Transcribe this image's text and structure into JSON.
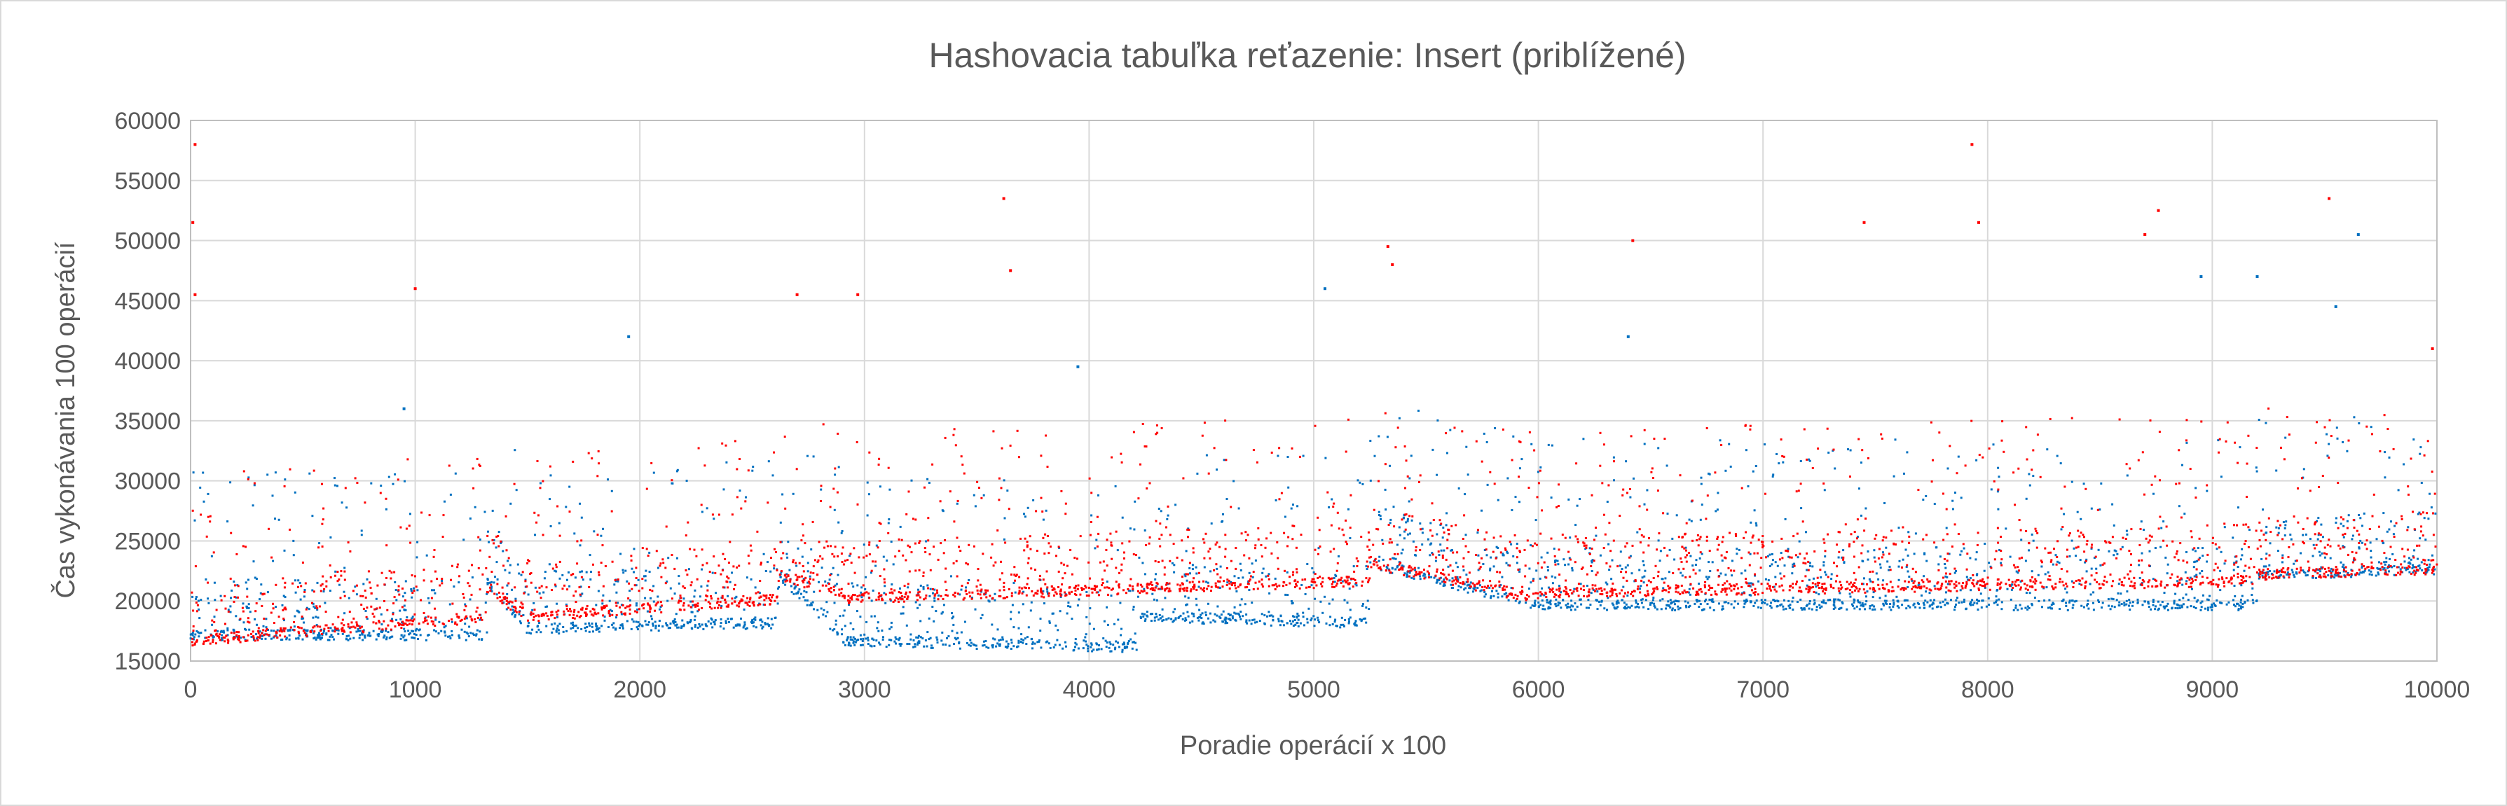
{
  "chart_data": {
    "type": "scatter",
    "title": "Hashovacia tabuľka reťazenie: Insert (priblížené)",
    "xlabel": "Poradie operácií x 100",
    "ylabel": "Čas vykonávania 100 operácií",
    "xlim": [
      0,
      10000
    ],
    "ylim": [
      15000,
      60000
    ],
    "x_ticks": [
      0,
      1000,
      2000,
      3000,
      4000,
      5000,
      6000,
      7000,
      8000,
      9000,
      10000
    ],
    "y_ticks": [
      15000,
      20000,
      25000,
      30000,
      35000,
      40000,
      45000,
      50000,
      55000,
      60000
    ],
    "grid": true,
    "legend": "none",
    "series": [
      {
        "color": "#0070c0",
        "baseline_segments": [
          {
            "x": [
              0,
              1320
            ],
            "y": [
              17000,
              17000
            ]
          },
          {
            "x": [
              1320,
              1500
            ],
            "y": [
              21500,
              17500
            ]
          },
          {
            "x": [
              1500,
              2620
            ],
            "y": [
              17500,
              18000
            ]
          },
          {
            "x": [
              2620,
              2900
            ],
            "y": [
              22000,
              17000
            ]
          },
          {
            "x": [
              2900,
              4220
            ],
            "y": [
              16500,
              16000
            ]
          },
          {
            "x": [
              4220,
              5250
            ],
            "y": [
              18500,
              18000
            ]
          },
          {
            "x": [
              5250,
              6000
            ],
            "y": [
              23000,
              19500
            ]
          },
          {
            "x": [
              6000,
              9200
            ],
            "y": [
              19500,
              19500
            ]
          },
          {
            "x": [
              9200,
              10000
            ],
            "y": [
              22000,
              22500
            ]
          }
        ],
        "outliers": [
          {
            "x": 950,
            "y": 36000
          },
          {
            "x": 1950,
            "y": 42000
          },
          {
            "x": 3950,
            "y": 39500
          },
          {
            "x": 5050,
            "y": 46000
          },
          {
            "x": 6400,
            "y": 42000
          },
          {
            "x": 8950,
            "y": 47000
          },
          {
            "x": 9200,
            "y": 47000
          },
          {
            "x": 9650,
            "y": 50500
          },
          {
            "x": 9550,
            "y": 44500
          }
        ]
      },
      {
        "color": "#ff0000",
        "baseline_segments": [
          {
            "x": [
              0,
              1320
            ],
            "y": [
              16500,
              18500
            ]
          },
          {
            "x": [
              1320,
              1500
            ],
            "y": [
              21000,
              18500
            ]
          },
          {
            "x": [
              1500,
              2620
            ],
            "y": [
              18500,
              20000
            ]
          },
          {
            "x": [
              2620,
              2900
            ],
            "y": [
              22000,
              20500
            ]
          },
          {
            "x": [
              2900,
              5250
            ],
            "y": [
              20000,
              21500
            ]
          },
          {
            "x": [
              5250,
              6000
            ],
            "y": [
              23000,
              20000
            ]
          },
          {
            "x": [
              6000,
              9200
            ],
            "y": [
              20500,
              21500
            ]
          },
          {
            "x": [
              9200,
              10000
            ],
            "y": [
              22000,
              22500
            ]
          }
        ],
        "outliers": [
          {
            "x": 20,
            "y": 58000
          },
          {
            "x": 10,
            "y": 51500
          },
          {
            "x": 20,
            "y": 45500
          },
          {
            "x": 1000,
            "y": 46000
          },
          {
            "x": 2700,
            "y": 45500
          },
          {
            "x": 2970,
            "y": 45500
          },
          {
            "x": 3620,
            "y": 53500
          },
          {
            "x": 3650,
            "y": 47500
          },
          {
            "x": 5330,
            "y": 49500
          },
          {
            "x": 5350,
            "y": 48000
          },
          {
            "x": 6420,
            "y": 50000
          },
          {
            "x": 7450,
            "y": 51500
          },
          {
            "x": 7930,
            "y": 58000
          },
          {
            "x": 7960,
            "y": 51500
          },
          {
            "x": 8760,
            "y": 52500
          },
          {
            "x": 8700,
            "y": 50500
          },
          {
            "x": 9520,
            "y": 53500
          },
          {
            "x": 9980,
            "y": 41000
          }
        ]
      }
    ]
  }
}
